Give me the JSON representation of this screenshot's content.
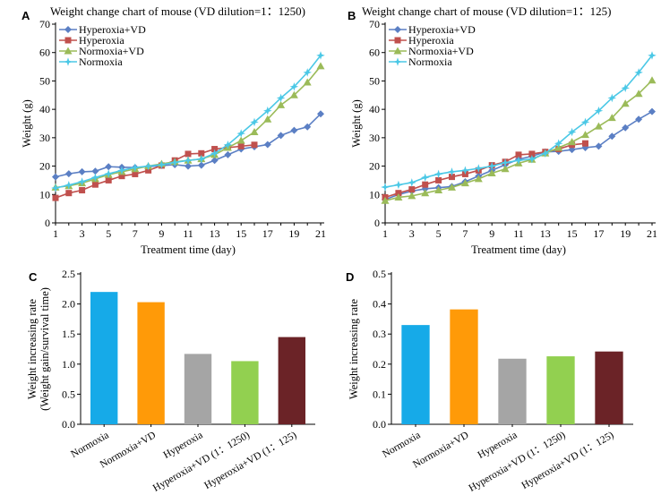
{
  "panels": {
    "A": "A",
    "B": "B",
    "C": "C",
    "D": "D"
  },
  "chart_data": [
    {
      "id": "A",
      "type": "line",
      "title": "Weight change chart of mouse (VD dilution=1：1250)",
      "xlabel": "Treatment time (day)",
      "ylabel": "Weight (g)",
      "xlim": [
        1,
        21
      ],
      "ylim": [
        0,
        70
      ],
      "xticks": [
        1,
        3,
        5,
        7,
        9,
        11,
        13,
        15,
        17,
        19,
        21
      ],
      "yticks": [
        0,
        10,
        20,
        30,
        40,
        50,
        60,
        70
      ],
      "grid": false,
      "legend": "top-left",
      "series": [
        {
          "name": "Hyperoxia+VD",
          "color": "#5b7fc4",
          "marker": "diamond",
          "x": [
            1,
            2,
            3,
            4,
            5,
            6,
            7,
            8,
            9,
            10,
            11,
            12,
            13,
            14,
            15,
            16,
            17,
            18,
            19,
            20,
            21
          ],
          "y": [
            16.2,
            17.3,
            18,
            18.2,
            19.8,
            19.6,
            19.5,
            19.8,
            20.2,
            20.5,
            20,
            20.3,
            22,
            24,
            26,
            26.8,
            27.6,
            30.8,
            32.6,
            33.8,
            38.4
          ]
        },
        {
          "name": "Hyperoxia",
          "color": "#c0504d",
          "marker": "square",
          "x": [
            1,
            2,
            3,
            4,
            5,
            6,
            7,
            8,
            9,
            10,
            11,
            12,
            13,
            14,
            15,
            16
          ],
          "y": [
            8.8,
            10.5,
            11.5,
            13.5,
            15,
            16.5,
            17.2,
            18.5,
            20.2,
            22,
            24.3,
            24.5,
            26,
            26.5,
            27,
            27.5
          ]
        },
        {
          "name": "Normoxia+VD",
          "color": "#9bbb59",
          "marker": "triangle",
          "x": [
            1,
            2,
            3,
            4,
            5,
            6,
            7,
            8,
            9,
            10,
            11,
            12,
            13,
            14,
            15,
            16,
            17,
            18,
            19,
            20,
            21
          ],
          "y": [
            12.5,
            13,
            14,
            15.5,
            17,
            18,
            19,
            20,
            20.8,
            21.5,
            22,
            22.5,
            24,
            26.5,
            29,
            32,
            36.5,
            41.5,
            45,
            49.5,
            55.2
          ]
        },
        {
          "name": "Normoxia",
          "color": "#4bc8e6",
          "marker": "star",
          "x": [
            1,
            2,
            3,
            4,
            5,
            6,
            7,
            8,
            9,
            10,
            11,
            12,
            13,
            14,
            15,
            16,
            17,
            18,
            19,
            20,
            21
          ],
          "y": [
            12.3,
            13.3,
            14.5,
            16,
            17.3,
            18.5,
            19.5,
            20,
            20.5,
            21.3,
            22,
            22.5,
            24.5,
            27.5,
            31.5,
            35.5,
            39.5,
            44,
            48,
            53,
            59
          ]
        }
      ]
    },
    {
      "id": "B",
      "type": "line",
      "title": "Weight change chart of mouse (VD dilution=1：125)",
      "xlabel": "Treatment time (day)",
      "ylabel": "Weight (g)",
      "xlim": [
        1,
        21
      ],
      "ylim": [
        0,
        70
      ],
      "xticks": [
        1,
        3,
        5,
        7,
        9,
        11,
        13,
        15,
        17,
        19,
        21
      ],
      "yticks": [
        0,
        10,
        20,
        30,
        40,
        50,
        60,
        70
      ],
      "grid": false,
      "legend": "top-left",
      "series": [
        {
          "name": "Hyperoxia+VD",
          "color": "#5b7fc4",
          "marker": "diamond",
          "x": [
            1,
            2,
            3,
            4,
            5,
            6,
            7,
            8,
            9,
            10,
            11,
            12,
            13,
            14,
            15,
            16,
            17,
            18,
            19,
            20,
            21
          ],
          "y": [
            8.2,
            10,
            11.2,
            12,
            12.4,
            12.8,
            14.5,
            16.5,
            18.5,
            20.5,
            22.4,
            23.5,
            25,
            25.2,
            25.8,
            26.5,
            27,
            30.5,
            33.5,
            36.5,
            39.2
          ]
        },
        {
          "name": "Hyperoxia",
          "color": "#c0504d",
          "marker": "square",
          "x": [
            1,
            2,
            3,
            4,
            5,
            6,
            7,
            8,
            9,
            10,
            11,
            12,
            13,
            14,
            15,
            16
          ],
          "y": [
            9,
            10.5,
            11.8,
            13.5,
            15,
            16.2,
            17.2,
            18.5,
            20.3,
            21.5,
            24,
            24.3,
            25,
            26,
            27.5,
            28
          ]
        },
        {
          "name": "Normoxia+VD",
          "color": "#9bbb59",
          "marker": "triangle",
          "x": [
            1,
            2,
            3,
            4,
            5,
            6,
            7,
            8,
            9,
            10,
            11,
            12,
            13,
            14,
            15,
            16,
            17,
            18,
            19,
            20,
            21
          ],
          "y": [
            7.8,
            9,
            9.5,
            10.5,
            11.5,
            12.5,
            14,
            15.5,
            17.5,
            19,
            21,
            22.3,
            24.5,
            26.5,
            28.5,
            31,
            34,
            37,
            42,
            45.5,
            50.2
          ]
        },
        {
          "name": "Normoxia",
          "color": "#4bc8e6",
          "marker": "star",
          "x": [
            1,
            2,
            3,
            4,
            5,
            6,
            7,
            8,
            9,
            10,
            11,
            12,
            13,
            14,
            15,
            16,
            17,
            18,
            19,
            20,
            21
          ],
          "y": [
            12.6,
            13.4,
            14.2,
            16,
            17.2,
            18,
            18.5,
            19.2,
            20,
            21.2,
            22,
            22.5,
            24.5,
            28,
            32,
            35.5,
            39.5,
            44,
            47.5,
            53,
            59
          ]
        }
      ]
    },
    {
      "id": "C",
      "type": "bar",
      "title": "",
      "xlabel": "",
      "ylabel": "Weight increasing rate",
      "ylabel2": "(Weight gain/survival time)",
      "ylim": [
        0,
        2.5
      ],
      "yticks": [
        0.0,
        0.5,
        1.0,
        1.5,
        2.0,
        2.5
      ],
      "grid": false,
      "categories": [
        "Normoxia",
        "Normoxia+VD",
        "Hyperoxia",
        "Hyperoxia+VD (1：1250)",
        "Hyperoxia+VD (1：125)"
      ],
      "values": [
        2.2,
        2.03,
        1.17,
        1.05,
        1.45
      ],
      "colors": [
        "#16aae8",
        "#ff9a08",
        "#a5a5a5",
        "#92d050",
        "#6b2327"
      ]
    },
    {
      "id": "D",
      "type": "bar",
      "title": "",
      "xlabel": "",
      "ylabel": "Weight increasing rate",
      "ylim": [
        0,
        0.5
      ],
      "yticks": [
        0.0,
        0.1,
        0.2,
        0.3,
        0.4,
        0.5
      ],
      "grid": false,
      "categories": [
        "Normoxia",
        "Normoxia+VD",
        "Hyperoxia",
        "Hyperoxia+VD (1：1250)",
        "Hyperoxia+VD (1：125)"
      ],
      "values": [
        0.33,
        0.382,
        0.218,
        0.226,
        0.242
      ],
      "colors": [
        "#16aae8",
        "#ff9a08",
        "#a5a5a5",
        "#92d050",
        "#6b2327"
      ]
    }
  ]
}
